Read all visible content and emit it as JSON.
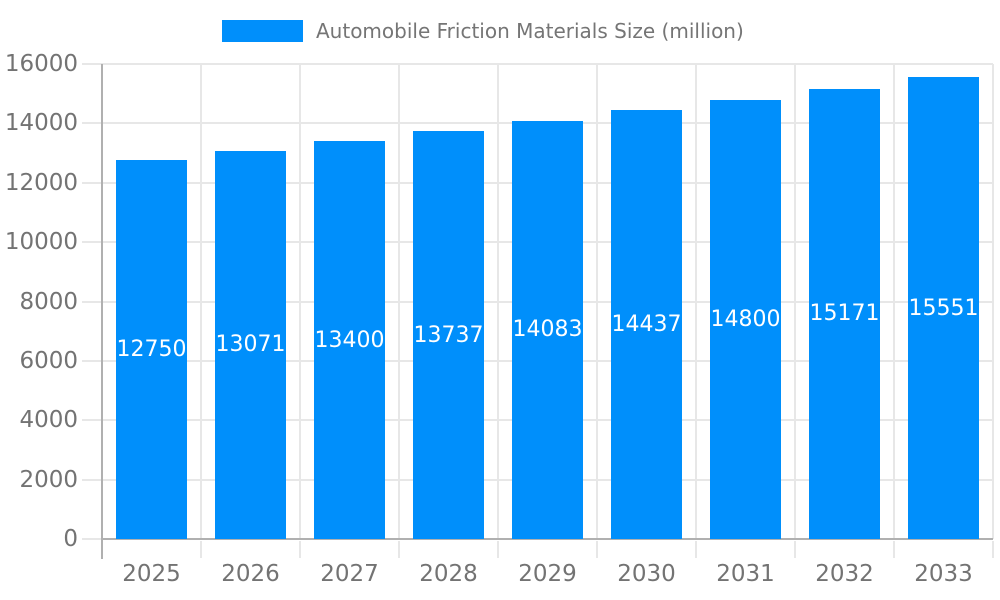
{
  "chart_data": {
    "type": "bar",
    "title": "Automobile Friction Materials Size (million)",
    "legend": {
      "label": "Automobile Friction Materials Size (million)",
      "position": "top"
    },
    "categories": [
      "2025",
      "2026",
      "2027",
      "2028",
      "2029",
      "2030",
      "2031",
      "2032",
      "2033"
    ],
    "series": [
      {
        "name": "Automobile Friction Materials Size (million)",
        "values": [
          12750,
          13071,
          13400,
          13737,
          14083,
          14437,
          14800,
          15171,
          15551
        ]
      }
    ],
    "ylim": [
      0,
      16000
    ],
    "yticks": [
      0,
      2000,
      4000,
      6000,
      8000,
      10000,
      12000,
      14000,
      16000
    ],
    "grid": true,
    "data_labels": "inside-center",
    "colors": {
      "bar": "#008FFB",
      "data_label_text": "#FFFFFF",
      "axis_text": "#737373",
      "legend_text": "#757575",
      "gridline": "#E7E7E7",
      "axis_line": "#B0B0B0",
      "background": "#FFFFFF"
    }
  }
}
